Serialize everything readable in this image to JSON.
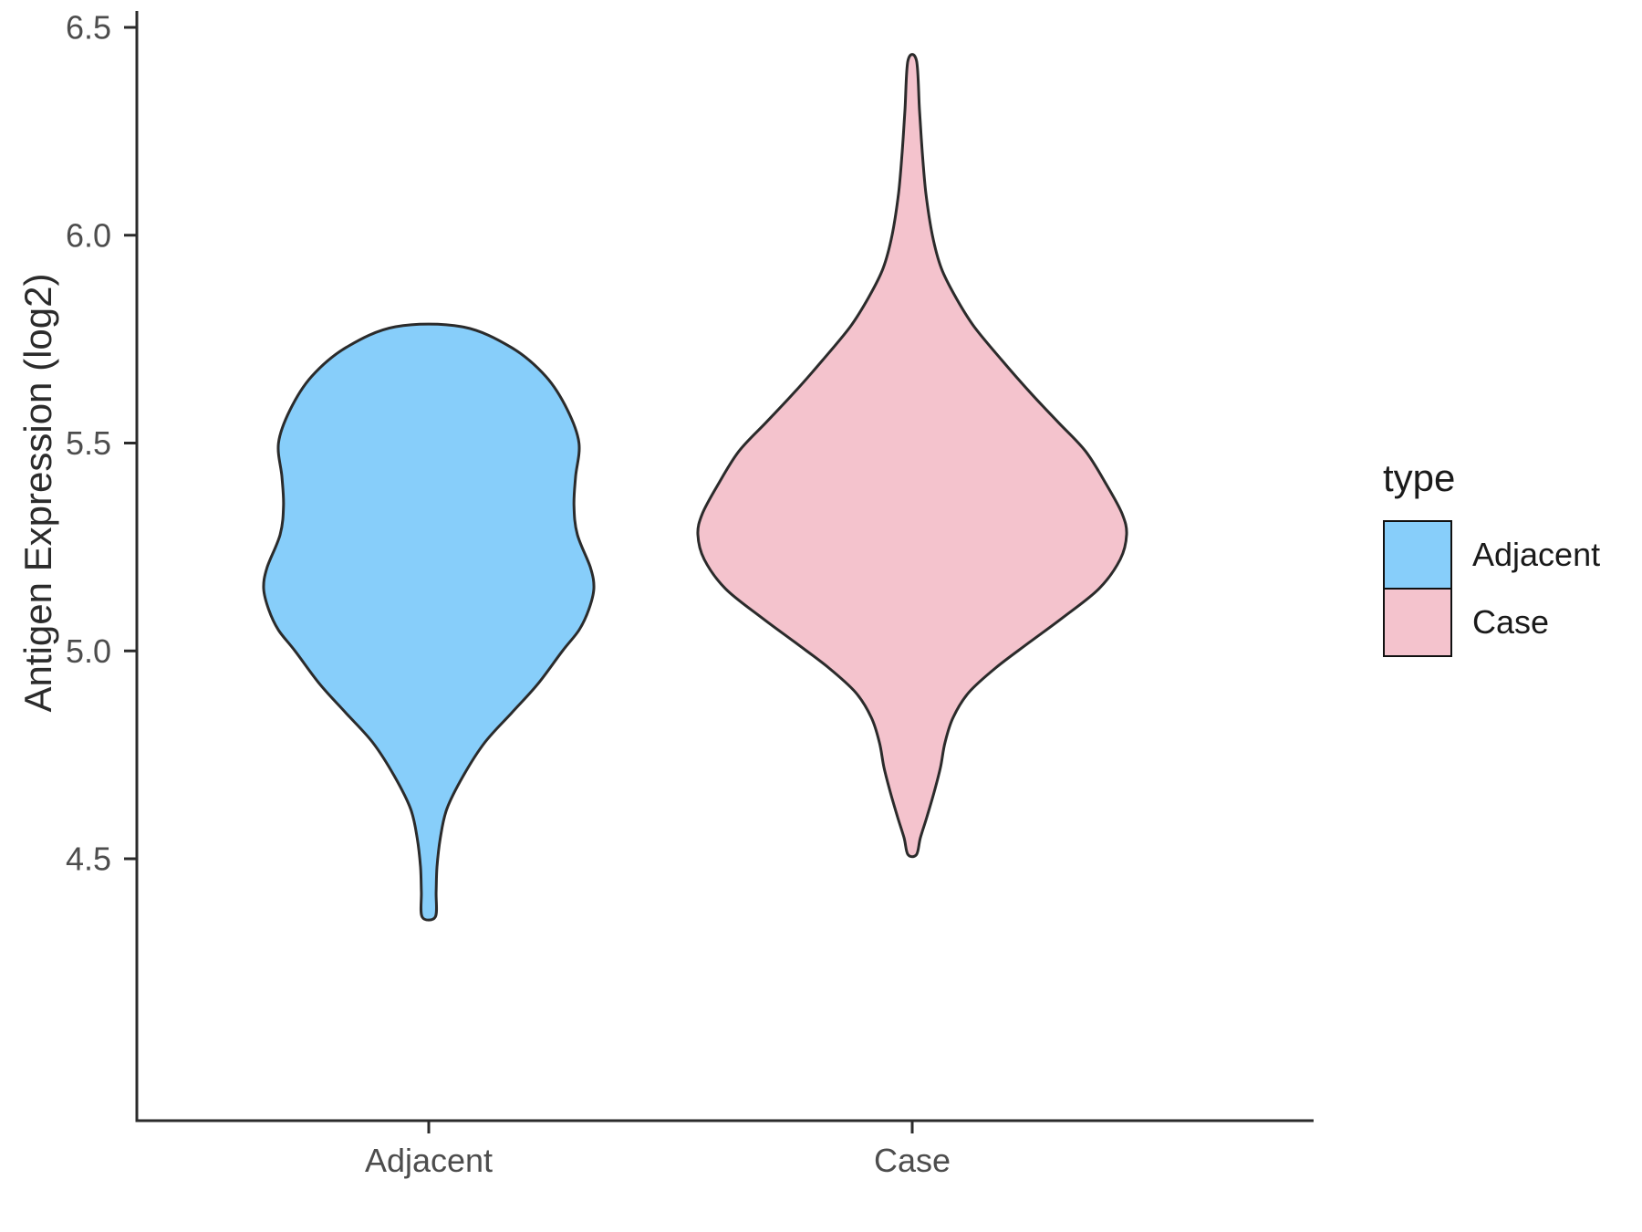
{
  "chart_data": {
    "type": "violin",
    "ylabel": "Antigen Expression (log2)",
    "categories": [
      "Adjacent",
      "Case"
    ],
    "yticks": [
      {
        "label": "6.5",
        "value": 6.5
      },
      {
        "label": "6.0",
        "value": 6.0
      },
      {
        "label": "5.5",
        "value": 5.5
      },
      {
        "label": "5.0",
        "value": 5.0
      },
      {
        "label": "4.5",
        "value": 4.5
      }
    ],
    "ylim": [
      3.9,
      6.55
    ],
    "grid": false,
    "legend": {
      "title": "type",
      "position": "right",
      "entries": [
        {
          "label": "Adjacent",
          "color": "#87CEFA"
        },
        {
          "label": "Case",
          "color": "#F4C3CD"
        }
      ]
    },
    "colors": {
      "axis": "#2b2b2b",
      "tick_text": "#4d4d4d",
      "violin_outline": "#2b2b2b"
    },
    "series": [
      {
        "name": "Adjacent",
        "fill": "#87CEFA",
        "stroke": "#2b2b2b",
        "max_width_scale": 0.77,
        "data_range": [
          4.36,
          5.78
        ],
        "profile": [
          [
            5.78,
            0.2
          ],
          [
            5.73,
            0.5
          ],
          [
            5.66,
            0.71
          ],
          [
            5.58,
            0.84
          ],
          [
            5.5,
            0.91
          ],
          [
            5.42,
            0.89
          ],
          [
            5.35,
            0.88
          ],
          [
            5.28,
            0.9
          ],
          [
            5.2,
            0.98
          ],
          [
            5.15,
            1.0
          ],
          [
            5.1,
            0.97
          ],
          [
            5.05,
            0.91
          ],
          [
            5.0,
            0.81
          ],
          [
            4.92,
            0.66
          ],
          [
            4.85,
            0.5
          ],
          [
            4.78,
            0.34
          ],
          [
            4.7,
            0.21
          ],
          [
            4.62,
            0.11
          ],
          [
            4.55,
            0.07
          ],
          [
            4.48,
            0.05
          ],
          [
            4.42,
            0.045
          ],
          [
            4.36,
            0.04
          ]
        ]
      },
      {
        "name": "Case",
        "fill": "#F4C3CD",
        "stroke": "#2b2b2b",
        "max_width_scale": 1.0,
        "data_range": [
          4.51,
          6.42
        ],
        "profile": [
          [
            6.42,
            0.02
          ],
          [
            6.3,
            0.034
          ],
          [
            6.2,
            0.047
          ],
          [
            6.1,
            0.064
          ],
          [
            6.0,
            0.094
          ],
          [
            5.92,
            0.136
          ],
          [
            5.85,
            0.204
          ],
          [
            5.78,
            0.289
          ],
          [
            5.7,
            0.417
          ],
          [
            5.62,
            0.553
          ],
          [
            5.55,
            0.681
          ],
          [
            5.48,
            0.809
          ],
          [
            5.4,
            0.906
          ],
          [
            5.33,
            0.979
          ],
          [
            5.28,
            1.0
          ],
          [
            5.22,
            0.97
          ],
          [
            5.15,
            0.872
          ],
          [
            5.08,
            0.702
          ],
          [
            5.02,
            0.545
          ],
          [
            4.96,
            0.391
          ],
          [
            4.9,
            0.264
          ],
          [
            4.84,
            0.191
          ],
          [
            4.78,
            0.153
          ],
          [
            4.72,
            0.132
          ],
          [
            4.66,
            0.102
          ],
          [
            4.6,
            0.068
          ],
          [
            4.55,
            0.038
          ],
          [
            4.51,
            0.02
          ]
        ]
      }
    ]
  }
}
